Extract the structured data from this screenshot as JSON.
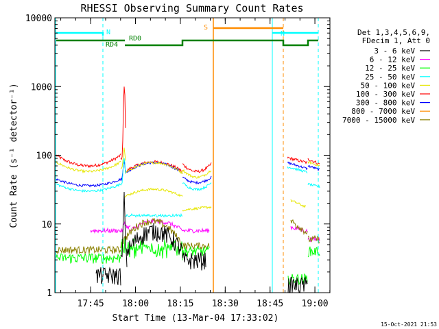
{
  "chart_data": {
    "type": "line",
    "title": "RHESSI Observing Summary Count Rates",
    "xlabel": "Start Time (13-Mar-04 17:33:02)",
    "ylabel": "Count Rate (s⁻¹ detector⁻¹)",
    "yscale": "log",
    "ylim": [
      1,
      10000
    ],
    "xlim_minutes": [
      -27,
      65
    ],
    "x_ticks": [
      "17:45",
      "18:00",
      "18:15",
      "18:30",
      "18:45",
      "19:00"
    ],
    "y_ticks": [
      "1",
      "10",
      "100",
      "1000",
      "10000"
    ],
    "legend_header": [
      "Det 1,3,4,5,6,9,",
      "FDecim 1, Att 0"
    ],
    "footer": "15-Oct-2021 21:53",
    "flags": {
      "N_label": "N",
      "S_label": "S",
      "RD0_label": "RD0",
      "RD4_label": "RD4"
    },
    "series": [
      {
        "name": "3 - 6 keV",
        "color": "#000000",
        "key": "s36"
      },
      {
        "name": "6 - 12 keV",
        "color": "#ff00ff",
        "key": "s612"
      },
      {
        "name": "12 - 25 keV",
        "color": "#00ff00",
        "key": "s1225"
      },
      {
        "name": "25 - 50 keV",
        "color": "#00ffff",
        "key": "s2550"
      },
      {
        "name": "50 - 100 keV",
        "color": "#e6e600",
        "key": "s50100"
      },
      {
        "name": "100 - 300 keV",
        "color": "#ff0000",
        "key": "s100300"
      },
      {
        "name": "300 - 800 keV",
        "color": "#0000ff",
        "key": "s300800"
      },
      {
        "name": "800 - 7000 keV",
        "color": "#ff8c00",
        "key": "s8007000"
      },
      {
        "name": "7000 - 15000 keV",
        "color": "#8b8000",
        "key": "s700015000"
      }
    ]
  }
}
